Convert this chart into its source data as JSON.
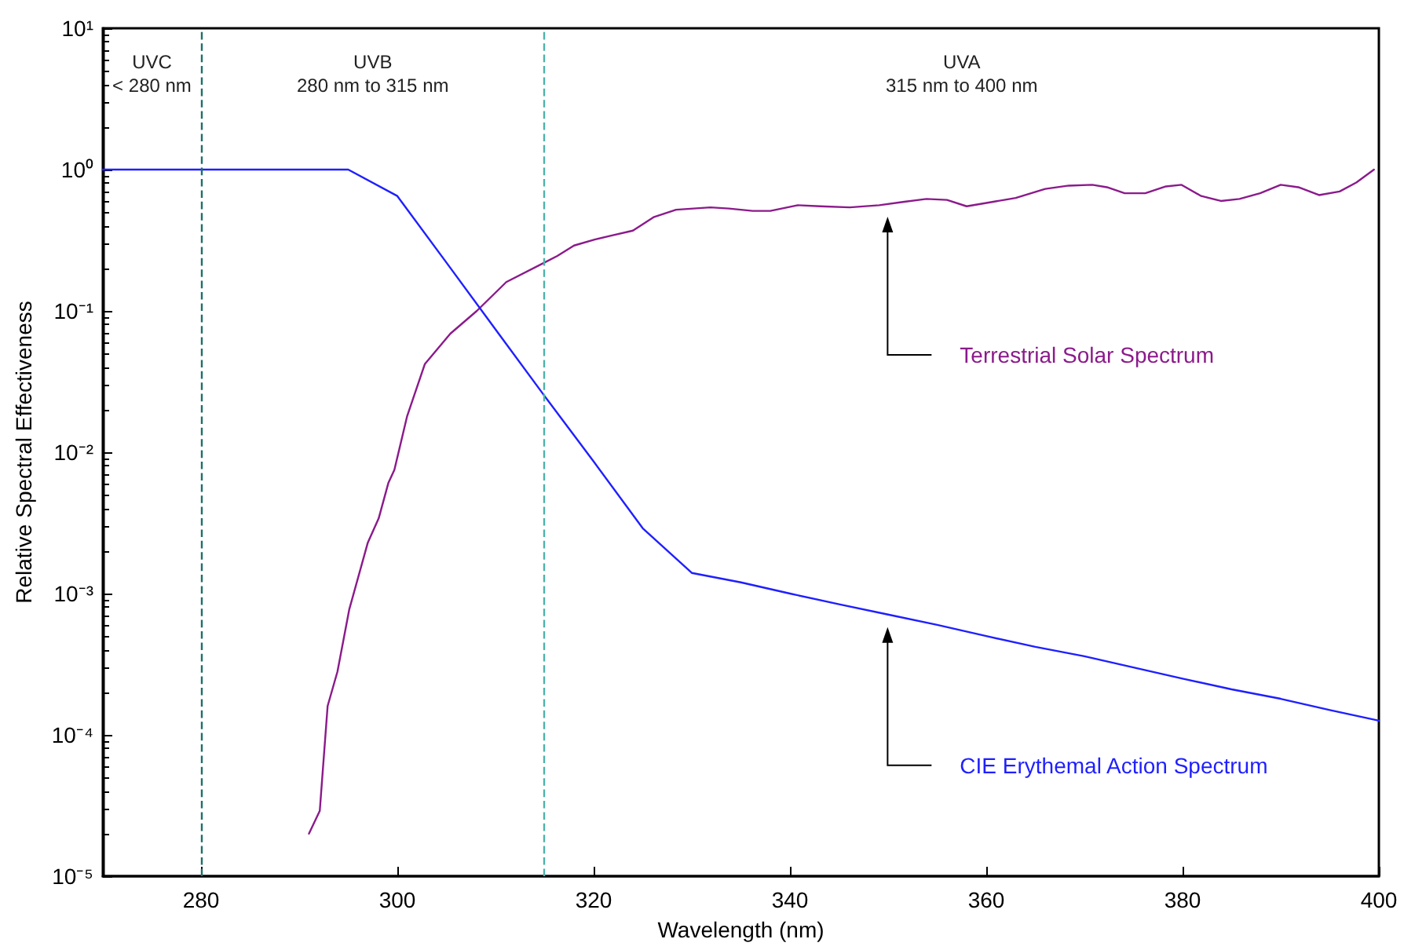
{
  "chart_data": {
    "type": "line",
    "xlabel": "Wavelength (nm)",
    "ylabel": "Relative Spectral Effectiveness",
    "log": "y",
    "grid": false,
    "marker": "none",
    "line_style": "solid",
    "xlim": [
      270,
      400
    ],
    "xticks": [
      280,
      300,
      320,
      340,
      360,
      380,
      400
    ],
    "ylim": [
      1e-05,
      10
    ],
    "yticks": [
      {
        "value": 1e-05,
        "label": "10⁻⁵"
      },
      {
        "value": 0.0001,
        "label": "10⁻⁴"
      },
      {
        "value": 0.001,
        "label": "10⁻³"
      },
      {
        "value": 0.01,
        "label": "10⁻²"
      },
      {
        "value": 0.1,
        "label": "10⁻¹"
      },
      {
        "value": 1,
        "label": "10⁰"
      },
      {
        "value": 10,
        "label": "10¹"
      }
    ],
    "series": [
      {
        "name": "Terrestrial Solar Spectrum",
        "color": "#8b1a8b",
        "x": [
          291.0,
          292.1,
          292.9,
          293.9,
          295.1,
          297.0,
          298.1,
          299.1,
          299.7,
          301.0,
          302.8,
          305.4,
          308.1,
          311.1,
          315.0,
          316.3,
          318.0,
          320.1,
          321.7,
          324.0,
          326.1,
          328.4,
          331.9,
          333.8,
          336.2,
          338.0,
          340.8,
          343.1,
          346.1,
          349.1,
          351.5,
          353.9,
          356.0,
          358.0,
          360.6,
          363.0,
          366.0,
          368.4,
          370.8,
          372.3,
          374.1,
          376.2,
          378.3,
          379.9,
          381.9,
          383.9,
          385.8,
          387.9,
          390.0,
          391.8,
          393.9,
          396.0,
          397.7,
          399.5
        ],
        "values": [
          2e-05,
          2.9e-05,
          0.00016,
          0.00028,
          0.00077,
          0.0023,
          0.0034,
          0.0061,
          0.0075,
          0.018,
          0.042,
          0.069,
          0.1,
          0.16,
          0.22,
          0.245,
          0.29,
          0.32,
          0.34,
          0.37,
          0.46,
          0.52,
          0.54,
          0.53,
          0.51,
          0.51,
          0.56,
          0.55,
          0.54,
          0.56,
          0.59,
          0.62,
          0.61,
          0.55,
          0.59,
          0.63,
          0.73,
          0.77,
          0.78,
          0.75,
          0.68,
          0.68,
          0.76,
          0.78,
          0.65,
          0.6,
          0.62,
          0.68,
          0.78,
          0.75,
          0.66,
          0.7,
          0.81,
          1.0
        ]
      },
      {
        "name": "CIE Erythemal Action Spectrum",
        "color": "#1f1fff",
        "x": [
          270,
          295,
          300,
          305,
          310,
          315,
          320,
          325,
          330,
          335,
          340,
          345,
          350,
          355,
          360,
          365,
          370,
          375,
          380,
          385,
          390,
          395,
          400
        ],
        "values": [
          1,
          1,
          0.65,
          0.22,
          0.074,
          0.025,
          0.0086,
          0.0029,
          0.0014,
          0.0012,
          0.001,
          0.00084,
          0.00071,
          0.0006,
          0.0005,
          0.00042,
          0.00036,
          0.0003,
          0.00025,
          0.00021,
          0.00018,
          0.00015,
          0.000126
        ]
      }
    ],
    "ref_lines": [
      {
        "axis": "x",
        "value": 280,
        "color": "#1f6f6a",
        "line_style": "dashed"
      },
      {
        "axis": "x",
        "value": 315,
        "color": "#4db3ab",
        "line_style": "dashed"
      }
    ],
    "annotations": [
      "UVC\n< 280 nm",
      "UVB\n280 nm to 315 nm",
      "UVA\n315 nm to 400 nm"
    ]
  }
}
